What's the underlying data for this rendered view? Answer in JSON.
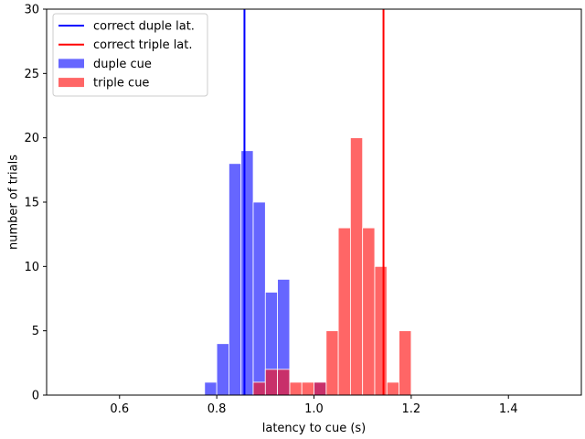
{
  "chart_data": {
    "type": "bar",
    "subtype": "histogram",
    "xlabel": "latency to cue (s)",
    "ylabel": "number of trials",
    "xlim": [
      0.45,
      1.55
    ],
    "ylim": [
      0,
      30
    ],
    "xticks": [
      "0.6",
      "0.8",
      "1.0",
      "1.2",
      "1.4"
    ],
    "xtick_values": [
      0.6,
      0.8,
      1.0,
      1.2,
      1.4
    ],
    "yticks": [
      "0",
      "5",
      "10",
      "15",
      "20",
      "25",
      "30"
    ],
    "ytick_values": [
      0,
      5,
      10,
      15,
      20,
      25,
      30
    ],
    "bin_width": 0.025,
    "series": [
      {
        "name": "duple cue",
        "color": "#6666ff",
        "bins": [
          {
            "x0": 0.775,
            "count": 1
          },
          {
            "x0": 0.8,
            "count": 4
          },
          {
            "x0": 0.825,
            "count": 18
          },
          {
            "x0": 0.85,
            "count": 19
          },
          {
            "x0": 0.875,
            "count": 15
          },
          {
            "x0": 0.9,
            "count": 8
          },
          {
            "x0": 0.925,
            "count": 9
          },
          {
            "x0": 0.95,
            "count": 0
          },
          {
            "x0": 0.975,
            "count": 0
          },
          {
            "x0": 1.0,
            "count": 1
          }
        ]
      },
      {
        "name": "triple cue",
        "color": "#ff6666",
        "bins": [
          {
            "x0": 0.875,
            "count": 1
          },
          {
            "x0": 0.9,
            "count": 2
          },
          {
            "x0": 0.925,
            "count": 2
          },
          {
            "x0": 0.95,
            "count": 1
          },
          {
            "x0": 0.975,
            "count": 1
          },
          {
            "x0": 1.0,
            "count": 1
          },
          {
            "x0": 1.025,
            "count": 5
          },
          {
            "x0": 1.05,
            "count": 13
          },
          {
            "x0": 1.075,
            "count": 20
          },
          {
            "x0": 1.1,
            "count": 13
          },
          {
            "x0": 1.125,
            "count": 10
          },
          {
            "x0": 1.15,
            "count": 1
          },
          {
            "x0": 1.175,
            "count": 5
          }
        ]
      }
    ],
    "overlap_color": "#c8306a",
    "vlines": [
      {
        "name": "correct duple lat.",
        "x": 0.857,
        "color": "#0000ff"
      },
      {
        "name": "correct triple lat.",
        "x": 1.143,
        "color": "#ff0000"
      }
    ],
    "legend": {
      "placement": "top-left",
      "entries": [
        {
          "label": "correct duple lat.",
          "kind": "line",
          "color": "#0000ff"
        },
        {
          "label": "correct triple lat.",
          "kind": "line",
          "color": "#ff0000"
        },
        {
          "label": "duple cue",
          "kind": "patch",
          "color": "#6666ff"
        },
        {
          "label": "triple cue",
          "kind": "patch",
          "color": "#ff6666"
        }
      ]
    },
    "grid": false
  }
}
